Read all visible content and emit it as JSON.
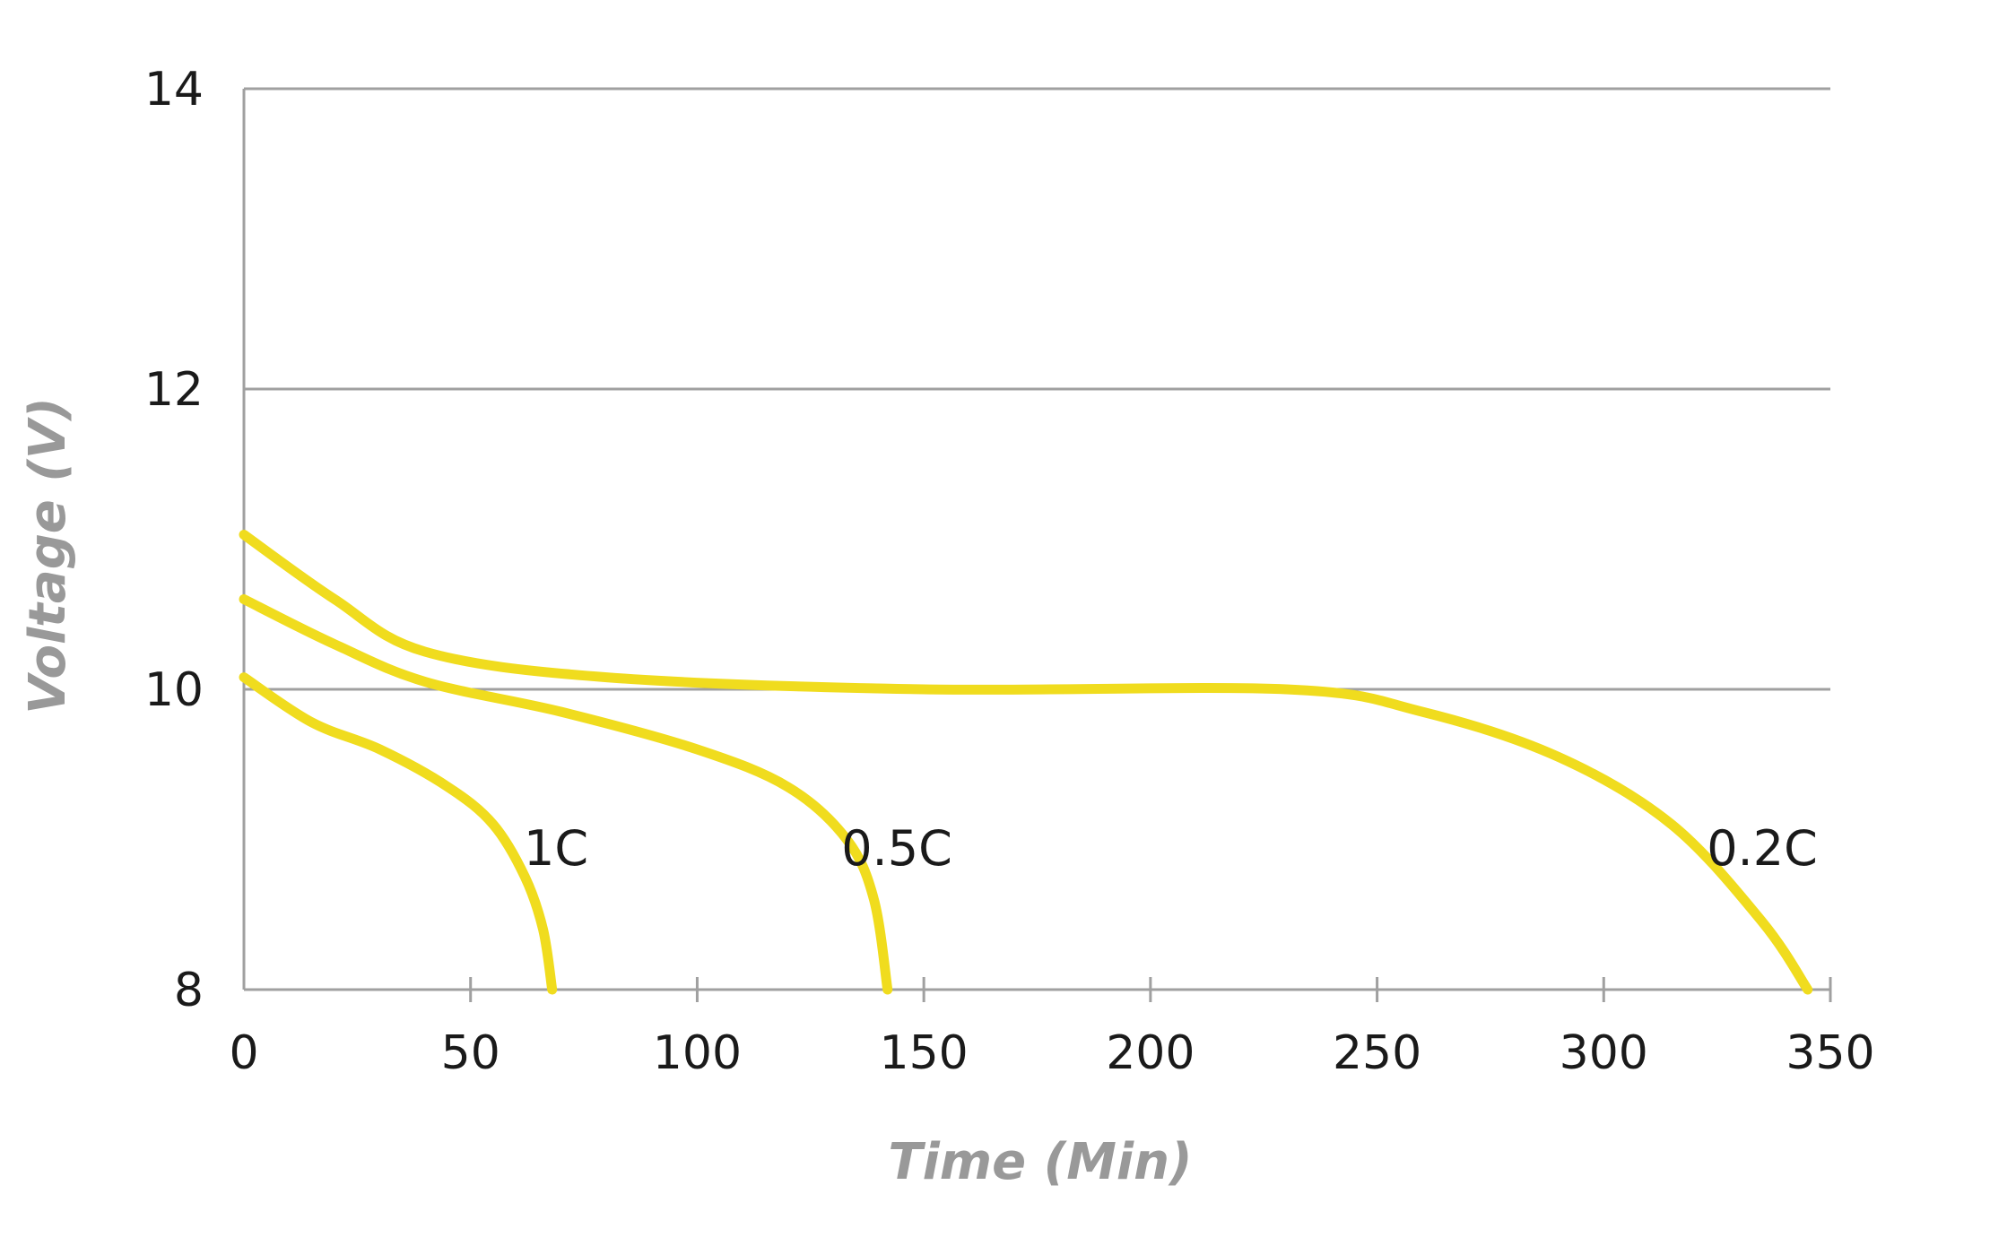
{
  "chart_data": {
    "type": "line",
    "title": "",
    "xlabel": "Time (Min)",
    "ylabel": "Voltage (V)",
    "xlim": [
      0,
      350
    ],
    "ylim": [
      8,
      14
    ],
    "x_ticks": [
      "0",
      "50",
      "100",
      "150",
      "200",
      "250",
      "300",
      "350"
    ],
    "y_ticks": [
      "8",
      "10",
      "12",
      "14"
    ],
    "grid": "horizontal",
    "line_color": "#f0dc1e",
    "series": [
      {
        "name": "1C",
        "points": [
          [
            0,
            10.08
          ],
          [
            15,
            9.78
          ],
          [
            30,
            9.6
          ],
          [
            45,
            9.35
          ],
          [
            55,
            9.1
          ],
          [
            62,
            8.75
          ],
          [
            66,
            8.4
          ],
          [
            68,
            8.0
          ]
        ]
      },
      {
        "name": "0.5C",
        "points": [
          [
            0,
            10.6
          ],
          [
            20,
            10.3
          ],
          [
            40,
            10.05
          ],
          [
            70,
            9.85
          ],
          [
            100,
            9.6
          ],
          [
            120,
            9.35
          ],
          [
            133,
            9.0
          ],
          [
            139,
            8.6
          ],
          [
            142,
            8.0
          ]
        ]
      },
      {
        "name": "0.2C",
        "points": [
          [
            0,
            11.03
          ],
          [
            20,
            10.6
          ],
          [
            40,
            10.25
          ],
          [
            80,
            10.08
          ],
          [
            150,
            10.0
          ],
          [
            230,
            10.0
          ],
          [
            260,
            9.85
          ],
          [
            290,
            9.55
          ],
          [
            315,
            9.1
          ],
          [
            335,
            8.45
          ],
          [
            345,
            8.0
          ]
        ]
      }
    ]
  }
}
